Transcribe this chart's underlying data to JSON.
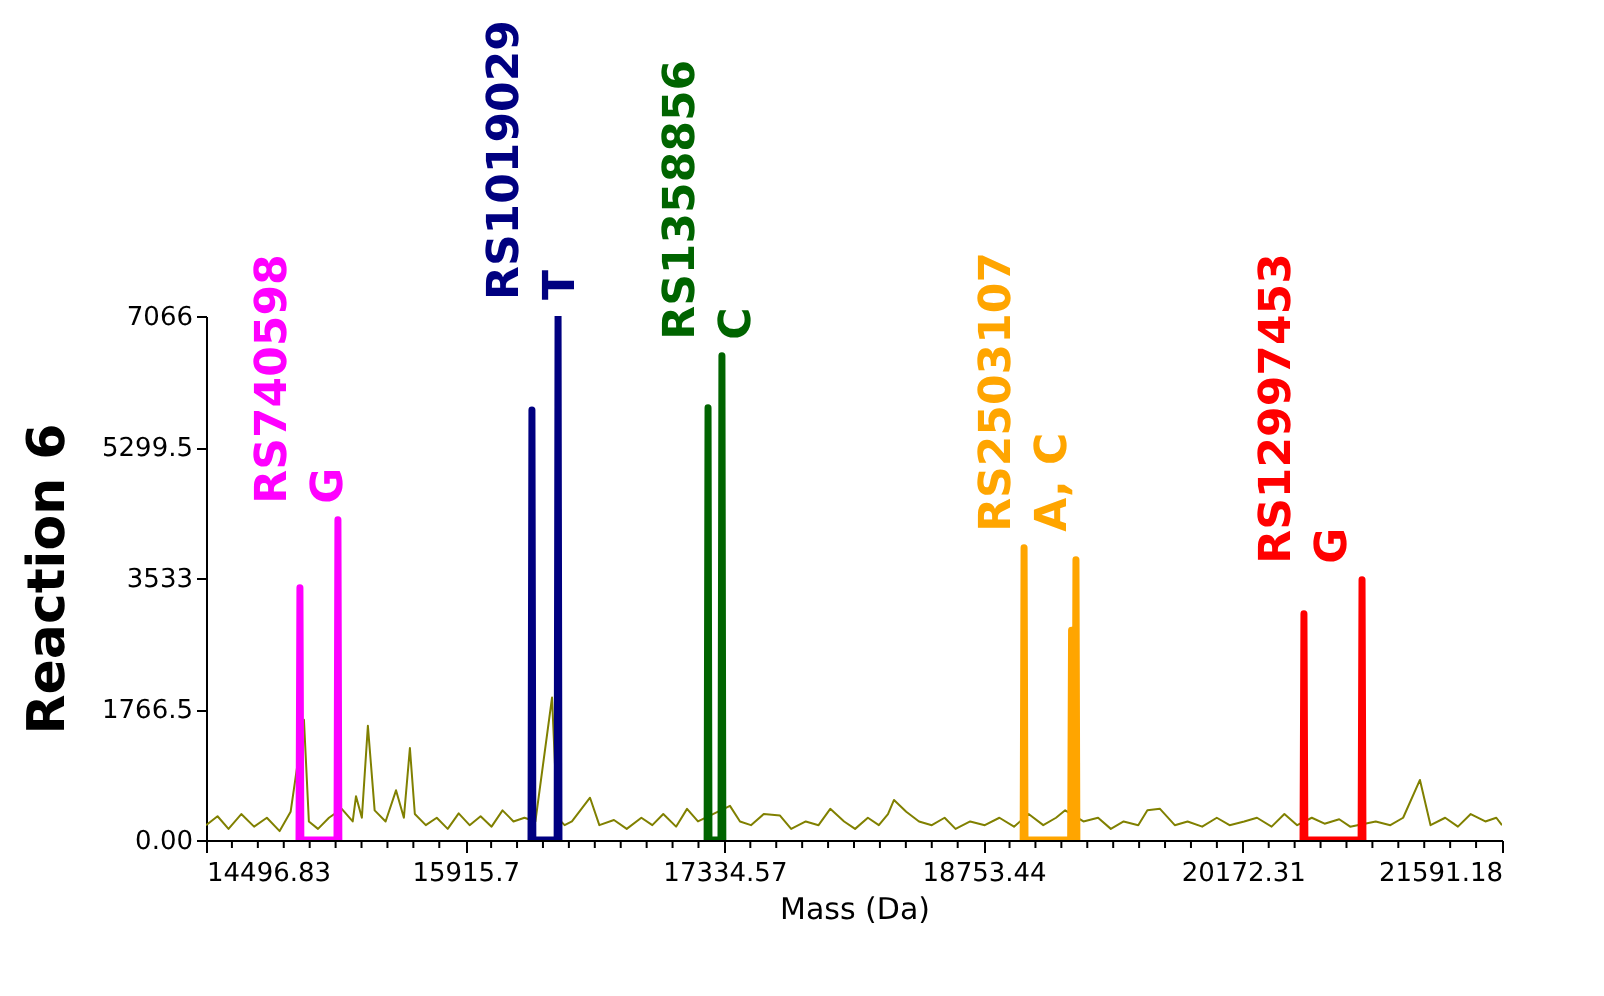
{
  "chart_data": {
    "type": "line",
    "xlabel": "Mass (Da)",
    "ylabel": "Reaction 6",
    "xlim": [
      14496.83,
      21591.18
    ],
    "ylim": [
      0,
      7066
    ],
    "xticks": [
      14496.83,
      {
        "value": 14638.717,
        "label": null
      },
      {
        "value": 14780.604,
        "label": null
      },
      {
        "value": 14922.491,
        "label": null
      },
      {
        "value": 15064.378,
        "label": null
      },
      {
        "value": 15206.265,
        "label": null
      },
      {
        "value": 15348.152,
        "label": null
      },
      {
        "value": 15490.039,
        "label": null
      },
      {
        "value": 15631.926,
        "label": null
      },
      {
        "value": 15773.813,
        "label": null
      },
      15915.7,
      {
        "value": 16057.587,
        "label": null
      },
      {
        "value": 16199.474,
        "label": null
      },
      {
        "value": 16341.361,
        "label": null
      },
      {
        "value": 16483.248,
        "label": null
      },
      {
        "value": 16625.135,
        "label": null
      },
      {
        "value": 16767.022,
        "label": null
      },
      {
        "value": 16908.909,
        "label": null
      },
      {
        "value": 17050.796,
        "label": null
      },
      {
        "value": 17192.683,
        "label": null
      },
      17334.57,
      {
        "value": 17476.457,
        "label": null
      },
      {
        "value": 17618.344,
        "label": null
      },
      {
        "value": 17760.231,
        "label": null
      },
      {
        "value": 17902.118,
        "label": null
      },
      {
        "value": 18044.005,
        "label": null
      },
      {
        "value": 18185.892,
        "label": null
      },
      {
        "value": 18327.779,
        "label": null
      },
      {
        "value": 18469.666,
        "label": null
      },
      {
        "value": 18611.553,
        "label": null
      },
      18753.44,
      {
        "value": 18895.327,
        "label": null
      },
      {
        "value": 19037.214,
        "label": null
      },
      {
        "value": 19179.101,
        "label": null
      },
      {
        "value": 19320.988,
        "label": null
      },
      {
        "value": 19462.875,
        "label": null
      },
      {
        "value": 19604.762,
        "label": null
      },
      {
        "value": 19746.649,
        "label": null
      },
      {
        "value": 19888.536,
        "label": null
      },
      {
        "value": 20030.423,
        "label": null
      },
      20172.31,
      {
        "value": 20314.197,
        "label": null
      },
      {
        "value": 20456.084,
        "label": null
      },
      {
        "value": 20597.971,
        "label": null
      },
      {
        "value": 20739.858,
        "label": null
      },
      {
        "value": 20881.745,
        "label": null
      },
      {
        "value": 21023.632,
        "label": null
      },
      {
        "value": 21165.519,
        "label": null
      },
      {
        "value": 21307.406,
        "label": null
      },
      {
        "value": 21449.293,
        "label": null
      },
      21591.18
    ],
    "yticks": [
      {
        "value": 0,
        "label": "0.00"
      },
      1766.5,
      3533,
      5299.5,
      7066
    ],
    "grid": false,
    "legend": false,
    "marker": "none",
    "line_style": "solid",
    "series": [
      {
        "color": "#808000",
        "x": [
          14497,
          14560,
          14620,
          14690,
          14760,
          14830,
          14900,
          14960,
          15033,
          15060,
          15110,
          15170,
          15240,
          15300,
          15318,
          15350,
          15383,
          15420,
          15480,
          15537,
          15580,
          15613,
          15640,
          15700,
          15760,
          15820,
          15880,
          15940,
          16000,
          16060,
          16120,
          16180,
          16240,
          16300,
          16391,
          16420,
          16460,
          16500,
          16599,
          16650,
          16730,
          16800,
          16880,
          16940,
          17000,
          17070,
          17130,
          17190,
          17365,
          17420,
          17480,
          17550,
          17639,
          17700,
          17780,
          17850,
          17914,
          17990,
          18050,
          18120,
          18180,
          18230,
          18263,
          18330,
          18400,
          18470,
          18540,
          18600,
          18680,
          18760,
          18840,
          18920,
          19000,
          19080,
          19150,
          19200,
          19300,
          19380,
          19450,
          19520,
          19600,
          19650,
          19719,
          19800,
          19870,
          19950,
          20030,
          20100,
          20180,
          20250,
          20330,
          20400,
          20470,
          20550,
          20620,
          20700,
          20760,
          20900,
          20980,
          21050,
          21142,
          21200,
          21280,
          21350,
          21420,
          21500,
          21560,
          21591
        ],
        "values": [
          200,
          320,
          150,
          350,
          180,
          300,
          120,
          380,
          1620,
          250,
          150,
          300,
          420,
          250,
          590,
          300,
          1540,
          400,
          250,
          670,
          300,
          1240,
          350,
          200,
          300,
          150,
          360,
          200,
          320,
          180,
          400,
          250,
          300,
          250,
          1920,
          300,
          200,
          250,
          570,
          200,
          270,
          150,
          300,
          200,
          350,
          180,
          420,
          250,
          460,
          250,
          200,
          350,
          330,
          150,
          250,
          200,
          420,
          250,
          150,
          300,
          200,
          350,
          540,
          380,
          250,
          200,
          300,
          150,
          250,
          200,
          300,
          180,
          350,
          200,
          300,
          400,
          250,
          300,
          150,
          250,
          200,
          400,
          420,
          200,
          250,
          180,
          300,
          200,
          250,
          300,
          180,
          350,
          200,
          300,
          220,
          280,
          180,
          250,
          200,
          300,
          810,
          200,
          300,
          180,
          350,
          250,
          300,
          200
        ]
      },
      {
        "name": "RS740598\nG",
        "color": "#ff00ff",
        "x": [
          15006,
          15011,
          15016,
          15214,
          15219,
          15224
        ],
        "values": [
          0,
          3400,
          0,
          0,
          4320,
          0
        ]
      },
      {
        "name": "RS1019029\nT",
        "color": "#000080",
        "x": [
          16276,
          16281,
          16286,
          16419,
          16424,
          16429
        ],
        "values": [
          0,
          5800,
          0,
          0,
          7066,
          0
        ]
      },
      {
        "name": "RS1358856\nC",
        "color": "#006400",
        "x": [
          17240,
          17245,
          17250,
          17316,
          17321,
          17326
        ],
        "values": [
          0,
          5830,
          0,
          0,
          6530,
          0
        ]
      },
      {
        "name": "RS2503107\nA, C",
        "color": "#ffa500",
        "x": [
          18970,
          18975,
          18980,
          19230,
          19235,
          19240,
          19254,
          19259,
          19264
        ],
        "values": [
          0,
          3940,
          0,
          0,
          2830,
          0,
          0,
          3780,
          0
        ]
      },
      {
        "name": "RS12997453\nG",
        "color": "#ff0000",
        "x": [
          20502,
          20507,
          20512,
          20820,
          20825,
          20830
        ],
        "values": [
          0,
          3050,
          0,
          0,
          3510,
          0
        ]
      }
    ]
  }
}
